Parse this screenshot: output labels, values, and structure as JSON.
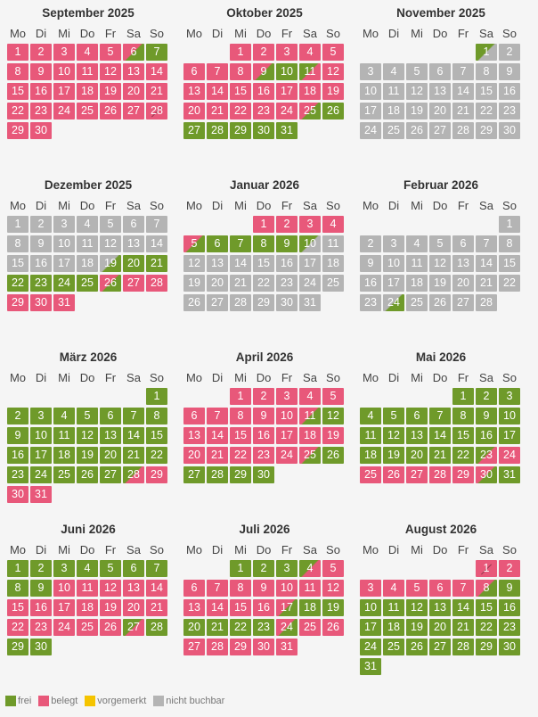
{
  "weekdays": [
    "Mo",
    "Di",
    "Mi",
    "Do",
    "Fr",
    "Sa",
    "So"
  ],
  "colors": {
    "frei": "#6f9a2a",
    "belegt": "#e8587a",
    "vorgemerkt": "#f5c400",
    "nicht_buchbar": "#b4b4b4"
  },
  "months": [
    {
      "title": "September 2025",
      "offset": 0,
      "states": "bbbbbbfbbbbbbbbbbbbbbbbbbbbbbbbbbbbbbbbbbbbbbbbbbbbbbbbbbbbbbbbb"
    },
    {
      "title": "Oktober 2025",
      "offset": 2,
      "states": ""
    },
    {
      "title": "November 2025",
      "offset": 5,
      "states": ""
    },
    {
      "title": "Dezember 2025",
      "offset": 0,
      "states": ""
    },
    {
      "title": "Januar 2026",
      "offset": 3,
      "states": ""
    },
    {
      "title": "Februar 2026",
      "offset": 6,
      "states": ""
    },
    {
      "title": "März 2026",
      "offset": 6,
      "states": ""
    },
    {
      "title": "April 2026",
      "offset": 2,
      "states": ""
    },
    {
      "title": "Mai 2026",
      "offset": 4,
      "states": ""
    },
    {
      "title": "Juni 2026",
      "offset": 0,
      "states": ""
    },
    {
      "title": "Juli 2026",
      "offset": 2,
      "states": ""
    },
    {
      "title": "August 2026",
      "offset": 5,
      "states": ""
    }
  ],
  "day_states": [
    [
      "b",
      "b",
      "b",
      "b",
      "b",
      "bf",
      "f",
      "b",
      "b",
      "b",
      "b",
      "b",
      "b",
      "b",
      "b",
      "b",
      "b",
      "b",
      "b",
      "b",
      "b",
      "b",
      "b",
      "b",
      "b",
      "b",
      "b",
      "bb",
      "b",
      "b"
    ],
    [
      "b",
      "b",
      "b",
      "b",
      "b",
      "b",
      "b",
      "b",
      "bf",
      "f",
      "fb",
      "b",
      "b",
      "b",
      "b",
      "b",
      "b",
      "b",
      "b",
      "b",
      "b",
      "b",
      "b",
      "b",
      "bf",
      "f",
      "f",
      "f",
      "f",
      "f",
      "f"
    ],
    [
      "fn",
      "n",
      "n",
      "n",
      "n",
      "n",
      "n",
      "n",
      "n",
      "n",
      "n",
      "n",
      "n",
      "n",
      "n",
      "n",
      "n",
      "n",
      "n",
      "n",
      "n",
      "n",
      "n",
      "n",
      "n",
      "n",
      "n",
      "n",
      "n",
      "n"
    ],
    [
      "n",
      "n",
      "n",
      "n",
      "n",
      "n",
      "n",
      "n",
      "n",
      "n",
      "n",
      "n",
      "n",
      "n",
      "n",
      "n",
      "n",
      "n",
      "nf",
      "f",
      "f",
      "f",
      "f",
      "f",
      "f",
      "bf",
      "b",
      "b",
      "b",
      "b",
      "b"
    ],
    [
      "b",
      "b",
      "b",
      "b",
      "bf",
      "f",
      "f",
      "f",
      "f",
      "fn",
      "n",
      "n",
      "n",
      "n",
      "n",
      "n",
      "n",
      "n",
      "n",
      "n",
      "n",
      "n",
      "n",
      "n",
      "n",
      "n",
      "n",
      "n",
      "n",
      "n",
      "n"
    ],
    [
      "n",
      "n",
      "n",
      "n",
      "n",
      "n",
      "n",
      "n",
      "n",
      "n",
      "n",
      "n",
      "n",
      "n",
      "n",
      "n",
      "n",
      "n",
      "n",
      "n",
      "n",
      "n",
      "n",
      "nf"
    ],
    [
      "f",
      "f",
      "f",
      "f",
      "f",
      "f",
      "f",
      "f",
      "f",
      "f",
      "f",
      "f",
      "f",
      "f",
      "f",
      "f",
      "f",
      "f",
      "f",
      "f",
      "f",
      "f",
      "f",
      "f",
      "f",
      "f",
      "f",
      "fb",
      "b",
      "b",
      "b"
    ],
    [
      "b",
      "b",
      "b",
      "b",
      "b",
      "b",
      "b",
      "b",
      "b",
      "b",
      "bf",
      "f",
      "b",
      "b",
      "b",
      "b",
      "b",
      "b",
      "b",
      "b",
      "b",
      "b",
      "b",
      "b",
      "bf",
      "f",
      "f",
      "f",
      "f",
      "f"
    ],
    [
      "f",
      "f",
      "f",
      "f",
      "f",
      "f",
      "f",
      "f",
      "f",
      "f",
      "f",
      "f",
      "f",
      "f",
      "f",
      "f",
      "f",
      "f",
      "f",
      "f",
      "f",
      "f",
      "fb",
      "b",
      "b",
      "b",
      "b",
      "b",
      "b",
      "bf",
      "f"
    ],
    [
      "f",
      "f",
      "f",
      "f",
      "f",
      "f",
      "f",
      "f",
      "f",
      "b",
      "b",
      "b",
      "b",
      "b",
      "b",
      "b",
      "b",
      "b",
      "b",
      "b",
      "b",
      "b",
      "b",
      "b",
      "b",
      "b",
      "fb",
      "f",
      "f",
      "f"
    ],
    [
      "f",
      "f",
      "f",
      "fb",
      "b",
      "b",
      "b",
      "b",
      "b",
      "b",
      "b",
      "b",
      "b",
      "b",
      "b",
      "b",
      "bf",
      "f",
      "f",
      "f",
      "f",
      "f",
      "f",
      "bf",
      "b",
      "b",
      "b",
      "b",
      "b",
      "b",
      "b"
    ],
    [
      "bb",
      "b",
      "b",
      "b",
      "b",
      "b",
      "b",
      "bf",
      "f",
      "f",
      "f",
      "f",
      "f",
      "f",
      "f",
      "f",
      "f",
      "f",
      "f",
      "f",
      "f",
      "f",
      "f",
      "f",
      "f",
      "f",
      "f",
      "f",
      "f",
      "f",
      "f"
    ]
  ],
  "legend": [
    {
      "label": "frei",
      "color": "#6f9a2a"
    },
    {
      "label": "belegt",
      "color": "#e8587a"
    },
    {
      "label": "vorgemerkt",
      "color": "#f5c400"
    },
    {
      "label": "nicht buchbar",
      "color": "#b4b4b4"
    }
  ]
}
